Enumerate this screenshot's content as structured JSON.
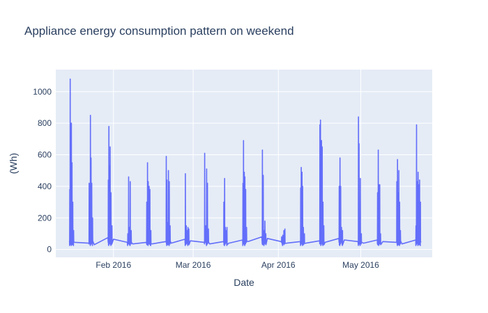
{
  "chart_data": {
    "type": "line",
    "title": "Appliance energy consumption pattern on weekend",
    "xlabel": "Date",
    "ylabel": "(Wh)",
    "xlim": [
      "2016-01-11",
      "2016-05-27"
    ],
    "ylim": [
      -50,
      1140
    ],
    "x_ticks": [
      {
        "date": "2016-02-01",
        "label": "Feb 2016"
      },
      {
        "date": "2016-03-01",
        "label": "Mar 2016"
      },
      {
        "date": "2016-04-01",
        "label": "Apr 2016"
      },
      {
        "date": "2016-05-01",
        "label": "May 2016"
      }
    ],
    "y_ticks": [
      0,
      200,
      400,
      600,
      800,
      1000
    ],
    "grid": true,
    "colors": {
      "line": "#636efa",
      "plot_bg": "#e5ecf6",
      "grid": "#ffffff",
      "text": "#2a3f5f"
    },
    "series": [
      {
        "weekends": [
          {
            "start": "2016-01-16",
            "spikes": [
              [
                0.05,
                380
              ],
              [
                0.12,
                1080
              ],
              [
                0.22,
                470
              ],
              [
                0.34,
                800
              ],
              [
                0.45,
                550
              ],
              [
                0.6,
                300
              ],
              [
                0.75,
                120
              ]
            ]
          },
          {
            "start": "2016-01-23",
            "spikes": [
              [
                0.08,
                420
              ],
              [
                0.2,
                120
              ],
              [
                0.3,
                850
              ],
              [
                0.42,
                580
              ],
              [
                0.55,
                420
              ],
              [
                0.7,
                200
              ]
            ]
          },
          {
            "start": "2016-01-30",
            "spikes": [
              [
                0.06,
                440
              ],
              [
                0.16,
                780
              ],
              [
                0.3,
                530
              ],
              [
                0.4,
                650
              ],
              [
                0.55,
                360
              ],
              [
                0.72,
                150
              ]
            ]
          },
          {
            "start": "2016-02-06",
            "spikes": [
              [
                0.1,
                100
              ],
              [
                0.25,
                460
              ],
              [
                0.4,
                140
              ],
              [
                0.55,
                430
              ],
              [
                0.72,
                120
              ]
            ]
          },
          {
            "start": "2016-02-13",
            "spikes": [
              [
                0.05,
                300
              ],
              [
                0.2,
                550
              ],
              [
                0.32,
                430
              ],
              [
                0.48,
                400
              ],
              [
                0.62,
                380
              ],
              [
                0.8,
                120
              ]
            ]
          },
          {
            "start": "2016-02-20",
            "spikes": [
              [
                0.1,
                590
              ],
              [
                0.22,
                440
              ],
              [
                0.35,
                170
              ],
              [
                0.5,
                500
              ],
              [
                0.65,
                430
              ],
              [
                0.8,
                150
              ]
            ]
          },
          {
            "start": "2016-02-27",
            "spikes": [
              [
                0.08,
                480
              ],
              [
                0.25,
                150
              ],
              [
                0.4,
                120
              ],
              [
                0.55,
                140
              ],
              [
                0.72,
                130
              ]
            ]
          },
          {
            "start": "2016-03-05",
            "spikes": [
              [
                0.1,
                610
              ],
              [
                0.3,
                150
              ],
              [
                0.45,
                510
              ],
              [
                0.6,
                420
              ],
              [
                0.78,
                130
              ]
            ]
          },
          {
            "start": "2016-03-12",
            "spikes": [
              [
                0.08,
                300
              ],
              [
                0.22,
                450
              ],
              [
                0.36,
                140
              ],
              [
                0.5,
                120
              ],
              [
                0.65,
                140
              ]
            ]
          },
          {
            "start": "2016-03-19",
            "spikes": [
              [
                0.06,
                420
              ],
              [
                0.16,
                690
              ],
              [
                0.3,
                490
              ],
              [
                0.42,
                460
              ],
              [
                0.56,
                380
              ],
              [
                0.72,
                140
              ]
            ]
          },
          {
            "start": "2016-03-26",
            "spikes": [
              [
                0.1,
                630
              ],
              [
                0.25,
                470
              ],
              [
                0.4,
                120
              ],
              [
                0.55,
                180
              ],
              [
                0.72,
                100
              ]
            ]
          },
          {
            "start": "2016-04-02",
            "spikes": [
              [
                0.1,
                80
              ],
              [
                0.3,
                90
              ],
              [
                0.5,
                120
              ],
              [
                0.7,
                130
              ]
            ]
          },
          {
            "start": "2016-04-09",
            "spikes": [
              [
                0.06,
                390
              ],
              [
                0.16,
                520
              ],
              [
                0.3,
                490
              ],
              [
                0.42,
                400
              ],
              [
                0.56,
                140
              ],
              [
                0.75,
                100
              ]
            ]
          },
          {
            "start": "2016-04-16",
            "spikes": [
              [
                0.06,
                790
              ],
              [
                0.16,
                820
              ],
              [
                0.26,
                240
              ],
              [
                0.36,
                690
              ],
              [
                0.48,
                650
              ],
              [
                0.62,
                300
              ],
              [
                0.78,
                150
              ]
            ]
          },
          {
            "start": "2016-04-23",
            "spikes": [
              [
                0.08,
                400
              ],
              [
                0.22,
                580
              ],
              [
                0.35,
                400
              ],
              [
                0.5,
                140
              ],
              [
                0.68,
                120
              ]
            ]
          },
          {
            "start": "2016-04-30",
            "spikes": [
              [
                0.08,
                840
              ],
              [
                0.18,
                670
              ],
              [
                0.3,
                180
              ],
              [
                0.42,
                450
              ],
              [
                0.6,
                100
              ]
            ]
          },
          {
            "start": "2016-05-07",
            "spikes": [
              [
                0.06,
                360
              ],
              [
                0.18,
                630
              ],
              [
                0.3,
                410
              ],
              [
                0.45,
                410
              ],
              [
                0.6,
                100
              ]
            ]
          },
          {
            "start": "2016-05-14",
            "spikes": [
              [
                0.06,
                430
              ],
              [
                0.18,
                570
              ],
              [
                0.3,
                360
              ],
              [
                0.42,
                500
              ],
              [
                0.56,
                300
              ],
              [
                0.72,
                120
              ]
            ]
          },
          {
            "start": "2016-05-21",
            "spikes": [
              [
                0.05,
                150
              ],
              [
                0.15,
                790
              ],
              [
                0.28,
                430
              ],
              [
                0.42,
                490
              ],
              [
                0.56,
                410
              ],
              [
                0.7,
                440
              ],
              [
                0.85,
                300
              ]
            ]
          }
        ],
        "baseline_wh": [
          45,
          30,
          65,
          35,
          35,
          40,
          55,
          35,
          40,
          50,
          70,
          40,
          40,
          45,
          60,
          40,
          50,
          35,
          50
        ]
      }
    ]
  }
}
